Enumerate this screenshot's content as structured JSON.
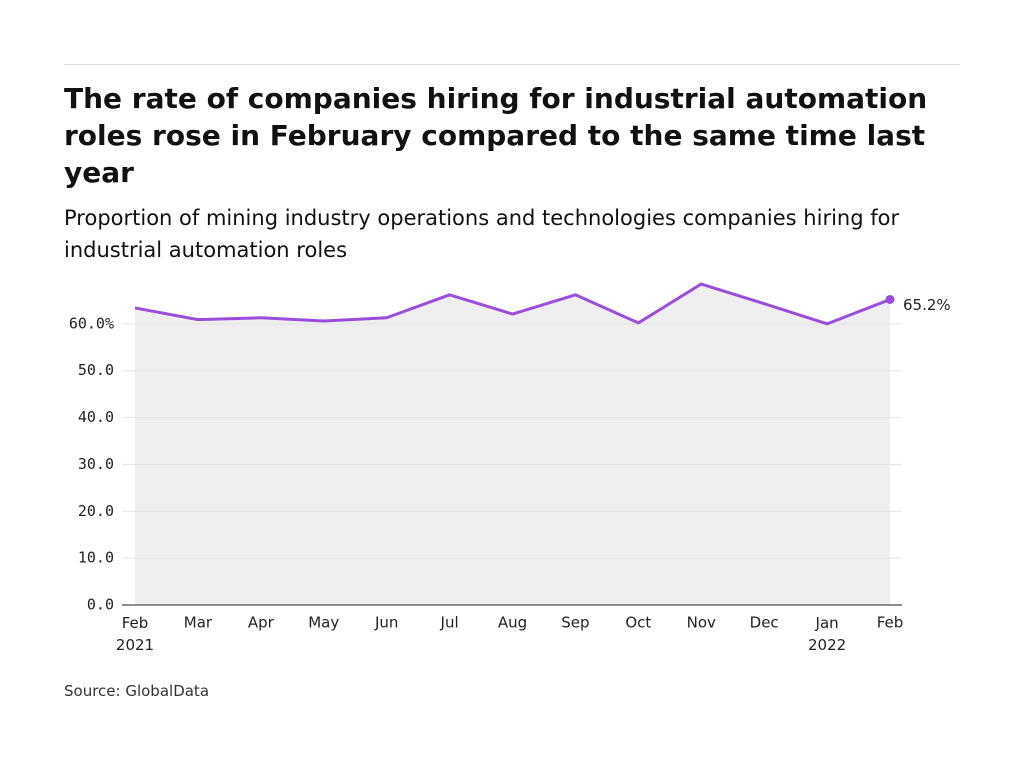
{
  "chart_data": {
    "type": "line",
    "title": "The rate of companies hiring for industrial automation roles rose in February compared to the same time last year",
    "subtitle": "Proportion of mining industry operations and technologies companies hiring for industrial automation roles",
    "source": "Source: GlobalData",
    "categories": [
      "Feb\n2021",
      "Mar",
      "Apr",
      "May",
      "Jun",
      "Jul",
      "Aug",
      "Sep",
      "Oct",
      "Nov",
      "Dec",
      "Jan\n2022",
      "Feb"
    ],
    "values": [
      63.4,
      60.9,
      61.3,
      60.6,
      61.3,
      66.2,
      62.1,
      66.2,
      60.2,
      68.5,
      64.3,
      60.0,
      65.2
    ],
    "value_labels": [
      null,
      null,
      null,
      null,
      null,
      null,
      null,
      null,
      null,
      null,
      null,
      null,
      "65.2%"
    ],
    "color": "#9b4ddb",
    "area_color": "#efefef",
    "ylim": [
      0,
      70
    ],
    "yticks": [
      {
        "value": 0,
        "label": "0.0"
      },
      {
        "value": 10,
        "label": "10.0"
      },
      {
        "value": 20,
        "label": "20.0"
      },
      {
        "value": 30,
        "label": "30.0"
      },
      {
        "value": 40,
        "label": "40.0"
      },
      {
        "value": 50,
        "label": "50.0"
      },
      {
        "value": 60,
        "label": "60.0%"
      }
    ],
    "grid": true
  }
}
